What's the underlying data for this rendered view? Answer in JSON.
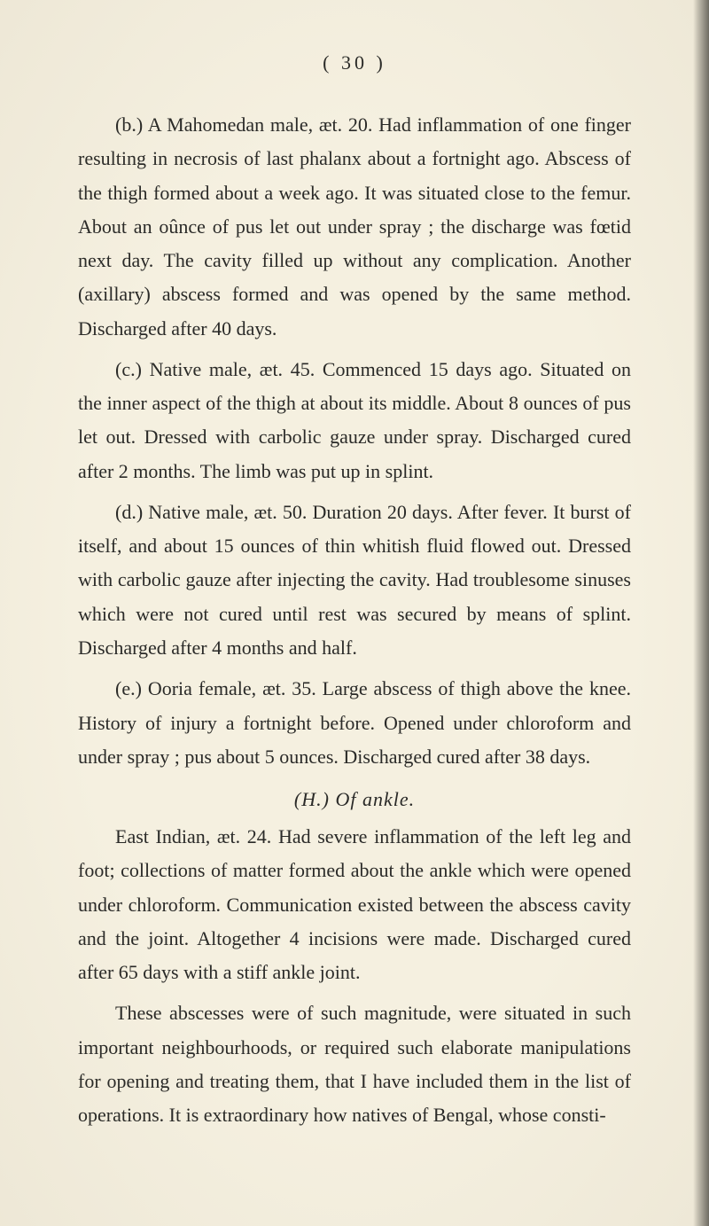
{
  "pageNumber": "( 30 )",
  "paragraphs": {
    "b": "(b.) A Mahomedan male, æt. 20. Had inflammation of one finger resulting in necrosis of last phalanx about a fortnight ago. Abscess of the thigh formed about a week ago. It was situated close to the femur. About an oûnce of pus let out under spray ; the discharge was fœtid next day. The cavity filled up without any complication. Another (axillary) abscess formed and was opened by the same method. Discharged after 40 days.",
    "c": "(c.) Native male, æt. 45. Commenced 15 days ago. Situated on the inner aspect of the thigh at about its middle. About 8 ounces of pus let out. Dressed with carbolic gauze under spray. Discharged cured after 2 months. The limb was put up in splint.",
    "d": "(d.) Native male, æt. 50. Duration 20 days. After fever. It burst of itself, and about 15 ounces of thin whitish fluid flowed out. Dressed with carbolic gauze after injecting the cavity. Had troublesome sinuses which were not cured until rest was secured by means of splint. Discharged after 4 months and half.",
    "e": "(e.) Ooria female, æt. 35. Large abscess of thigh above the knee. History of injury a fortnight before. Opened under chloroform and under spray ; pus about 5 ounces. Discharged cured after 38 days.",
    "heading": "(H.) Of ankle.",
    "p1": "East Indian, æt. 24. Had severe inflammation of the left leg and foot; collections of matter formed about the ankle which were opened under chloroform. Com­munication existed between the abscess cavity and the joint. Altogether 4 incisions were made. Discharged cured after 65 days with a stiff ankle joint.",
    "p2": "These abscesses were of such magnitude, were situated in such important neighbourhoods, or required such elaborate manipulations for opening and treating them, that I have included them in the list of operations. It is extraordinary how natives of Bengal, whose consti-"
  },
  "style": {
    "bg": "#f5f0e0",
    "text": "#2a2a28",
    "fontSize": 22,
    "lineHeight": 1.74,
    "indent": 42,
    "pageWidth": 800,
    "pageHeight": 1383
  }
}
